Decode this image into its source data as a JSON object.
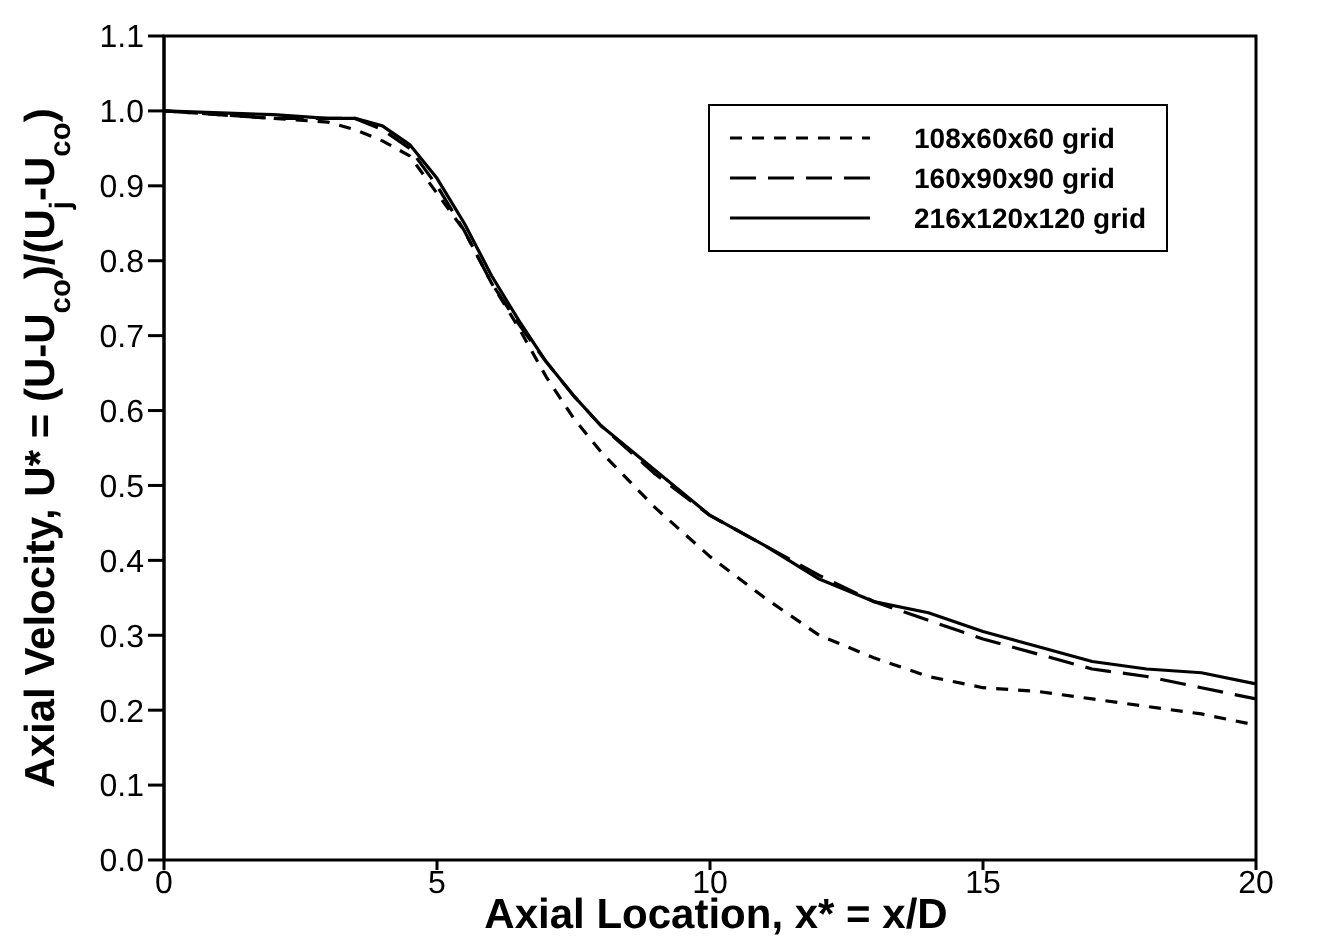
{
  "chart_data": {
    "type": "line",
    "xlabel": "Axial Location,  x* = x/D",
    "ylabel": "Axial Velocity,  U* = (U-U$_{co}$)/(U$_{j}$-U$_{co}$)",
    "x": [
      0,
      2,
      3,
      3.5,
      4,
      4.5,
      5,
      5.5,
      6,
      6.5,
      7,
      7.5,
      8,
      9,
      10,
      11,
      12,
      13,
      14,
      15,
      16,
      17,
      18,
      19,
      20
    ],
    "series": [
      {
        "name": "108x60x60 grid",
        "color": "#000000",
        "line_style": "dashed",
        "values": [
          1.0,
          0.99,
          0.985,
          0.975,
          0.96,
          0.94,
          0.89,
          0.84,
          0.77,
          0.71,
          0.645,
          0.59,
          0.545,
          0.47,
          0.405,
          0.35,
          0.3,
          0.27,
          0.245,
          0.23,
          0.225,
          0.215,
          0.205,
          0.195,
          0.18
        ]
      },
      {
        "name": "160x90x90 grid",
        "color": "#000000",
        "line_style": "dashed",
        "values": [
          1.0,
          0.99,
          0.99,
          0.99,
          0.975,
          0.95,
          0.9,
          0.84,
          0.77,
          0.715,
          0.665,
          0.62,
          0.58,
          0.515,
          0.46,
          0.42,
          0.38,
          0.345,
          0.32,
          0.295,
          0.275,
          0.255,
          0.245,
          0.23,
          0.215
        ]
      },
      {
        "name": "216x120x120 grid",
        "color": "#000000",
        "line_style": "solid",
        "values": [
          1.0,
          0.995,
          0.99,
          0.99,
          0.98,
          0.955,
          0.91,
          0.85,
          0.78,
          0.72,
          0.665,
          0.62,
          0.58,
          0.52,
          0.46,
          0.42,
          0.375,
          0.345,
          0.33,
          0.305,
          0.285,
          0.265,
          0.255,
          0.25,
          0.235
        ]
      }
    ],
    "xlim": [
      0,
      20
    ],
    "xticks": [
      0,
      5,
      10,
      15,
      20
    ],
    "ylim": [
      0,
      1.1
    ],
    "yticks": [
      {
        "value": 0,
        "label": "0.0"
      },
      {
        "value": 0.1,
        "label": "0.1"
      },
      {
        "value": 0.2,
        "label": "0.2"
      },
      {
        "value": 0.3,
        "label": "0.3"
      },
      {
        "value": 0.4,
        "label": "0.4"
      },
      {
        "value": 0.5,
        "label": "0.5"
      },
      {
        "value": 0.6,
        "label": "0.6"
      },
      {
        "value": 0.7,
        "label": "0.7"
      },
      {
        "value": 0.8,
        "label": "0.8"
      },
      {
        "value": 0.9,
        "label": "0.9"
      },
      {
        "value": 1.0,
        "label": "1.0"
      },
      {
        "value": 1.1,
        "label": "1.1"
      }
    ],
    "grid": false,
    "legend": "top right",
    "marker": "none"
  }
}
